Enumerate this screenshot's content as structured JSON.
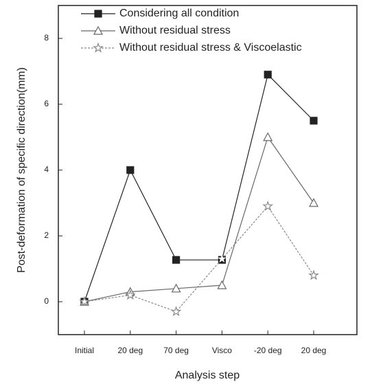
{
  "chart_data": {
    "type": "line",
    "x_label": "Analysis step",
    "y_label": "Post-deformation of  specific direction(mm)",
    "categories": [
      "Initial",
      "20 deg",
      "70 deg",
      "Visco",
      "-20 deg",
      "20 deg"
    ],
    "series": [
      {
        "name": "Considering all condition",
        "color": "#222222",
        "marker": "square",
        "values": [
          0,
          4.0,
          1.27,
          1.27,
          6.9,
          5.5
        ]
      },
      {
        "name": "Without residual stress",
        "color": "#666666",
        "marker": "triangle",
        "values": [
          0,
          0.3,
          0.4,
          0.5,
          5.0,
          3.0
        ]
      },
      {
        "name": "Without residual stress & Viscoelastic",
        "color": "#888888",
        "marker": "star",
        "values": [
          0,
          0.2,
          -0.3,
          1.3,
          2.9,
          0.8
        ]
      }
    ],
    "ylim": [
      -1,
      9
    ],
    "yticks": [
      0,
      2,
      4,
      6,
      8
    ]
  }
}
